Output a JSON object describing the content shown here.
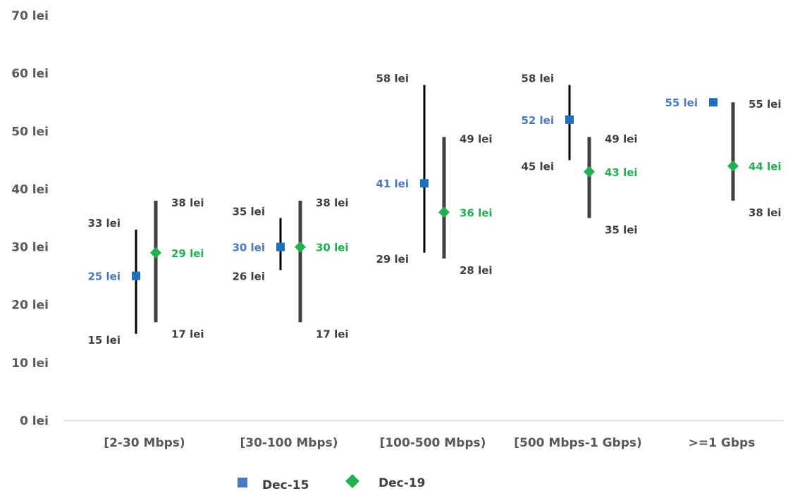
{
  "chart_data": {
    "type": "range-scatter",
    "y_unit_suffix": " lei",
    "ylim": [
      0,
      70
    ],
    "y_ticks": [
      "0 lei",
      "10 lei",
      "20 lei",
      "30 lei",
      "40 lei",
      "50 lei",
      "60 lei",
      "70 lei"
    ],
    "categories": [
      "[2-30 Mbps)",
      "[30-100 Mbps)",
      "[100-500 Mbps)",
      "[500 Mbps-1 Gbps)",
      ">=1 Gbps"
    ],
    "series": [
      {
        "name": "Dec-15",
        "color": "#1f6fbf",
        "label_color": "#4a78c2",
        "range_color": "#000000",
        "marker": "square",
        "values": [
          25,
          30,
          41,
          52,
          55
        ],
        "min": [
          15,
          26,
          29,
          45,
          null
        ],
        "max": [
          33,
          35,
          58,
          58,
          null
        ],
        "value_labels": [
          "25 lei",
          "30 lei",
          "41 lei",
          "52 lei",
          "55 lei"
        ],
        "min_labels": [
          "15 lei",
          "26 lei",
          "29 lei",
          "45 lei",
          null
        ],
        "max_labels": [
          "33 lei",
          "35 lei",
          "58 lei",
          "58 lei",
          null
        ]
      },
      {
        "name": "Dec-19",
        "color": "#1fb050",
        "label_color": "#1fb050",
        "range_color": "#404040",
        "marker": "diamond",
        "values": [
          29,
          30,
          36,
          43,
          44
        ],
        "min": [
          17,
          17,
          28,
          35,
          38
        ],
        "max": [
          38,
          38,
          49,
          49,
          55
        ],
        "value_labels": [
          "29 lei",
          "30 lei",
          "36 lei",
          "43 lei",
          "44 lei"
        ],
        "min_labels": [
          "17 lei",
          "17 lei",
          "28 lei",
          "35 lei",
          "38 lei"
        ],
        "max_labels": [
          "38 lei",
          "38 lei",
          "49 lei",
          "49 lei",
          "55 lei"
        ]
      }
    ],
    "legend": {
      "position": "bottom",
      "items": [
        "Dec-15",
        "Dec-19"
      ]
    },
    "grid": false
  }
}
